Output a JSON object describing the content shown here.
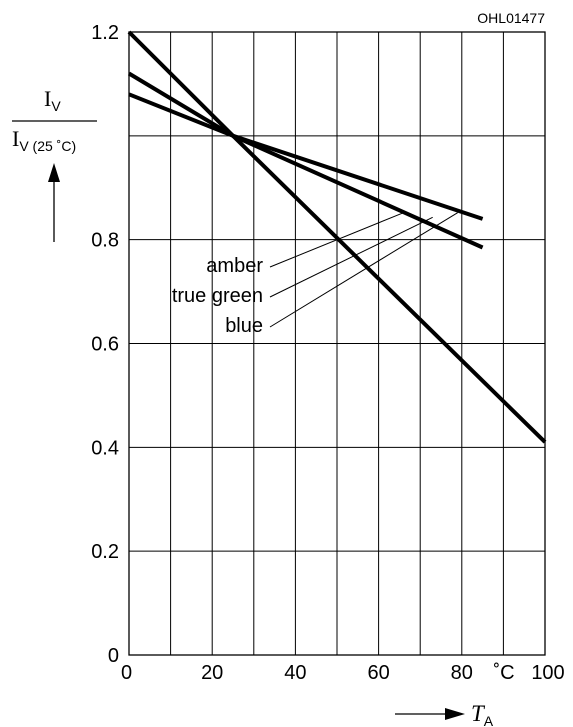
{
  "figure_id": "OHL01477",
  "chart_data": {
    "type": "line",
    "xlim": [
      0,
      100
    ],
    "ylim": [
      0,
      1.2
    ],
    "x_ticks": [
      0,
      20,
      40,
      60,
      80,
      100
    ],
    "x_tick_labels": [
      "0",
      "20",
      "40",
      "60",
      "80",
      "100"
    ],
    "x_unit": "˚C",
    "y_ticks": [
      0,
      0.2,
      0.4,
      0.6,
      0.8,
      1.2
    ],
    "y_tick_labels": [
      "0",
      "0.2",
      "0.4",
      "0.6",
      "0.8",
      "1.2"
    ],
    "x_grid_step": 10,
    "y_grid": [
      0.2,
      0.4,
      0.6,
      0.8,
      1.0
    ],
    "grid": true,
    "xlabel": {
      "main": "T",
      "sub": "A"
    },
    "ylabel": {
      "num_main": "I",
      "num_sub": "V",
      "den_main": "I",
      "den_sub": "V (25 ˚C)"
    },
    "series": [
      {
        "name": "amber",
        "x": [
          0,
          25,
          85
        ],
        "y": [
          1.08,
          1.0,
          0.84
        ]
      },
      {
        "name": "true green",
        "x": [
          0,
          25,
          85
        ],
        "y": [
          1.12,
          1.0,
          0.785
        ]
      },
      {
        "name": "blue",
        "x": [
          0,
          25,
          100
        ],
        "y": [
          1.2,
          1.0,
          0.41
        ]
      }
    ],
    "annotation_targets": [
      {
        "name": "amber",
        "x": 66,
        "y": 0.852
      },
      {
        "name": "true green",
        "x": 73,
        "y": 0.843
      },
      {
        "name": "blue",
        "x": 79,
        "y": 0.852
      }
    ]
  }
}
